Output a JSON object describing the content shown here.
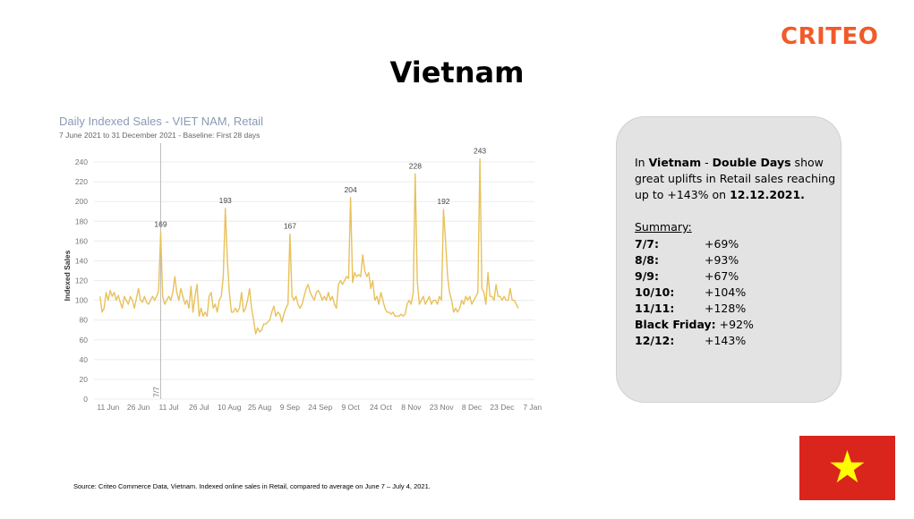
{
  "logo": "CRITEO",
  "page_title": "Vietnam",
  "chart_data": {
    "type": "line",
    "title": "Daily Indexed Sales - VIET NAM, Retail",
    "subtitle": "7 June 2021 to 31 December 2021  -  Baseline: First 28 days",
    "xlabel": "",
    "ylabel": "Indexed Sales",
    "yticks": [
      0,
      20,
      40,
      60,
      80,
      100,
      120,
      140,
      160,
      180,
      200,
      220,
      240
    ],
    "ylim": [
      0,
      250
    ],
    "xlim": [
      "2021-06-04",
      "2022-01-08"
    ],
    "xticks": [
      {
        "date": "2021-06-11",
        "label": "11 Jun"
      },
      {
        "date": "2021-06-26",
        "label": "26 Jun"
      },
      {
        "date": "2021-07-11",
        "label": "11 Jul"
      },
      {
        "date": "2021-07-26",
        "label": "26 Jul"
      },
      {
        "date": "2021-08-10",
        "label": "10 Aug"
      },
      {
        "date": "2021-08-25",
        "label": "25 Aug"
      },
      {
        "date": "2021-09-09",
        "label": "9 Sep"
      },
      {
        "date": "2021-09-24",
        "label": "24 Sep"
      },
      {
        "date": "2021-10-09",
        "label": "9 Oct"
      },
      {
        "date": "2021-10-24",
        "label": "24 Oct"
      },
      {
        "date": "2021-11-08",
        "label": "8 Nov"
      },
      {
        "date": "2021-11-23",
        "label": "23 Nov"
      },
      {
        "date": "2021-12-08",
        "label": "8 Dec"
      },
      {
        "date": "2021-12-23",
        "label": "23 Dec"
      },
      {
        "date": "2022-01-07",
        "label": "7 Jan"
      }
    ],
    "grid": "horizontal",
    "reference_line": {
      "date": "2021-07-07",
      "label": "7/7"
    },
    "series": [
      {
        "name": "",
        "color": "#e8c15a",
        "points": [
          [
            "2021-06-07",
            104
          ],
          [
            "2021-06-08",
            88
          ],
          [
            "2021-06-09",
            92
          ],
          [
            "2021-06-10",
            108
          ],
          [
            "2021-06-11",
            100
          ],
          [
            "2021-06-12",
            110
          ],
          [
            "2021-06-13",
            104
          ],
          [
            "2021-06-14",
            108
          ],
          [
            "2021-06-15",
            100
          ],
          [
            "2021-06-16",
            105
          ],
          [
            "2021-06-17",
            98
          ],
          [
            "2021-06-18",
            92
          ],
          [
            "2021-06-19",
            104
          ],
          [
            "2021-06-20",
            100
          ],
          [
            "2021-06-21",
            96
          ],
          [
            "2021-06-22",
            104
          ],
          [
            "2021-06-23",
            100
          ],
          [
            "2021-06-24",
            92
          ],
          [
            "2021-06-25",
            102
          ],
          [
            "2021-06-26",
            112
          ],
          [
            "2021-06-27",
            100
          ],
          [
            "2021-06-28",
            98
          ],
          [
            "2021-06-29",
            104
          ],
          [
            "2021-06-30",
            98
          ],
          [
            "2021-07-01",
            96
          ],
          [
            "2021-07-02",
            100
          ],
          [
            "2021-07-03",
            104
          ],
          [
            "2021-07-04",
            100
          ],
          [
            "2021-07-05",
            104
          ],
          [
            "2021-07-06",
            110
          ],
          [
            "2021-07-07",
            169
          ],
          [
            "2021-07-08",
            104
          ],
          [
            "2021-07-09",
            96
          ],
          [
            "2021-07-10",
            100
          ],
          [
            "2021-07-11",
            104
          ],
          [
            "2021-07-12",
            100
          ],
          [
            "2021-07-13",
            108
          ],
          [
            "2021-07-14",
            124
          ],
          [
            "2021-07-15",
            108
          ],
          [
            "2021-07-16",
            100
          ],
          [
            "2021-07-17",
            112
          ],
          [
            "2021-07-18",
            104
          ],
          [
            "2021-07-19",
            96
          ],
          [
            "2021-07-20",
            100
          ],
          [
            "2021-07-21",
            92
          ],
          [
            "2021-07-22",
            114
          ],
          [
            "2021-07-23",
            88
          ],
          [
            "2021-07-24",
            104
          ],
          [
            "2021-07-25",
            116
          ],
          [
            "2021-07-26",
            84
          ],
          [
            "2021-07-27",
            92
          ],
          [
            "2021-07-28",
            84
          ],
          [
            "2021-07-29",
            88
          ],
          [
            "2021-07-30",
            84
          ],
          [
            "2021-07-31",
            104
          ],
          [
            "2021-08-01",
            108
          ],
          [
            "2021-08-02",
            92
          ],
          [
            "2021-08-03",
            96
          ],
          [
            "2021-08-04",
            88
          ],
          [
            "2021-08-05",
            100
          ],
          [
            "2021-08-06",
            104
          ],
          [
            "2021-08-07",
            124
          ],
          [
            "2021-08-08",
            193
          ],
          [
            "2021-08-09",
            140
          ],
          [
            "2021-08-10",
            108
          ],
          [
            "2021-08-11",
            88
          ],
          [
            "2021-08-12",
            88
          ],
          [
            "2021-08-13",
            92
          ],
          [
            "2021-08-14",
            88
          ],
          [
            "2021-08-15",
            92
          ],
          [
            "2021-08-16",
            108
          ],
          [
            "2021-08-17",
            88
          ],
          [
            "2021-08-18",
            92
          ],
          [
            "2021-08-19",
            100
          ],
          [
            "2021-08-20",
            112
          ],
          [
            "2021-08-21",
            92
          ],
          [
            "2021-08-22",
            80
          ],
          [
            "2021-08-23",
            66
          ],
          [
            "2021-08-24",
            72
          ],
          [
            "2021-08-25",
            68
          ],
          [
            "2021-08-26",
            70
          ],
          [
            "2021-08-27",
            76
          ],
          [
            "2021-08-28",
            76
          ],
          [
            "2021-08-29",
            78
          ],
          [
            "2021-08-30",
            80
          ],
          [
            "2021-08-31",
            88
          ],
          [
            "2021-09-01",
            94
          ],
          [
            "2021-09-02",
            84
          ],
          [
            "2021-09-03",
            88
          ],
          [
            "2021-09-04",
            86
          ],
          [
            "2021-09-05",
            78
          ],
          [
            "2021-09-06",
            86
          ],
          [
            "2021-09-07",
            92
          ],
          [
            "2021-09-08",
            96
          ],
          [
            "2021-09-09",
            167
          ],
          [
            "2021-09-10",
            104
          ],
          [
            "2021-09-11",
            100
          ],
          [
            "2021-09-12",
            104
          ],
          [
            "2021-09-13",
            96
          ],
          [
            "2021-09-14",
            92
          ],
          [
            "2021-09-15",
            96
          ],
          [
            "2021-09-16",
            104
          ],
          [
            "2021-09-17",
            112
          ],
          [
            "2021-09-18",
            116
          ],
          [
            "2021-09-19",
            108
          ],
          [
            "2021-09-20",
            104
          ],
          [
            "2021-09-21",
            100
          ],
          [
            "2021-09-22",
            108
          ],
          [
            "2021-09-23",
            110
          ],
          [
            "2021-09-24",
            106
          ],
          [
            "2021-09-25",
            100
          ],
          [
            "2021-09-26",
            104
          ],
          [
            "2021-09-27",
            100
          ],
          [
            "2021-09-28",
            108
          ],
          [
            "2021-09-29",
            100
          ],
          [
            "2021-09-30",
            104
          ],
          [
            "2021-10-01",
            96
          ],
          [
            "2021-10-02",
            92
          ],
          [
            "2021-10-03",
            116
          ],
          [
            "2021-10-04",
            120
          ],
          [
            "2021-10-05",
            116
          ],
          [
            "2021-10-06",
            120
          ],
          [
            "2021-10-07",
            124
          ],
          [
            "2021-10-08",
            122
          ],
          [
            "2021-10-09",
            204
          ],
          [
            "2021-10-10",
            118
          ],
          [
            "2021-10-11",
            128
          ],
          [
            "2021-10-12",
            124
          ],
          [
            "2021-10-13",
            126
          ],
          [
            "2021-10-14",
            124
          ],
          [
            "2021-10-15",
            146
          ],
          [
            "2021-10-16",
            130
          ],
          [
            "2021-10-17",
            124
          ],
          [
            "2021-10-18",
            128
          ],
          [
            "2021-10-19",
            112
          ],
          [
            "2021-10-20",
            120
          ],
          [
            "2021-10-21",
            100
          ],
          [
            "2021-10-22",
            104
          ],
          [
            "2021-10-23",
            96
          ],
          [
            "2021-10-24",
            108
          ],
          [
            "2021-10-25",
            100
          ],
          [
            "2021-10-26",
            92
          ],
          [
            "2021-10-27",
            88
          ],
          [
            "2021-10-28",
            88
          ],
          [
            "2021-10-29",
            86
          ],
          [
            "2021-10-30",
            88
          ],
          [
            "2021-10-31",
            84
          ],
          [
            "2021-11-01",
            84
          ],
          [
            "2021-11-02",
            84
          ],
          [
            "2021-11-03",
            86
          ],
          [
            "2021-11-04",
            84
          ],
          [
            "2021-11-05",
            86
          ],
          [
            "2021-11-06",
            96
          ],
          [
            "2021-11-07",
            100
          ],
          [
            "2021-11-08",
            96
          ],
          [
            "2021-11-09",
            108
          ],
          [
            "2021-11-10",
            228
          ],
          [
            "2021-11-11",
            120
          ],
          [
            "2021-11-12",
            96
          ],
          [
            "2021-11-13",
            100
          ],
          [
            "2021-11-14",
            104
          ],
          [
            "2021-11-15",
            96
          ],
          [
            "2021-11-16",
            100
          ],
          [
            "2021-11-17",
            104
          ],
          [
            "2021-11-18",
            96
          ],
          [
            "2021-11-19",
            100
          ],
          [
            "2021-11-20",
            100
          ],
          [
            "2021-11-21",
            96
          ],
          [
            "2021-11-22",
            104
          ],
          [
            "2021-11-23",
            100
          ],
          [
            "2021-11-24",
            192
          ],
          [
            "2021-11-25",
            160
          ],
          [
            "2021-11-26",
            124
          ],
          [
            "2021-11-27",
            108
          ],
          [
            "2021-11-28",
            100
          ],
          [
            "2021-11-29",
            88
          ],
          [
            "2021-11-30",
            92
          ],
          [
            "2021-12-01",
            88
          ],
          [
            "2021-12-02",
            92
          ],
          [
            "2021-12-03",
            100
          ],
          [
            "2021-12-04",
            96
          ],
          [
            "2021-12-05",
            104
          ],
          [
            "2021-12-06",
            100
          ],
          [
            "2021-12-07",
            104
          ],
          [
            "2021-12-08",
            96
          ],
          [
            "2021-12-09",
            100
          ],
          [
            "2021-12-10",
            104
          ],
          [
            "2021-12-11",
            108
          ],
          [
            "2021-12-12",
            243
          ],
          [
            "2021-12-13",
            112
          ],
          [
            "2021-12-14",
            108
          ],
          [
            "2021-12-15",
            96
          ],
          [
            "2021-12-16",
            128
          ],
          [
            "2021-12-17",
            104
          ],
          [
            "2021-12-18",
            104
          ],
          [
            "2021-12-19",
            100
          ],
          [
            "2021-12-20",
            116
          ],
          [
            "2021-12-21",
            104
          ],
          [
            "2021-12-22",
            104
          ],
          [
            "2021-12-23",
            100
          ],
          [
            "2021-12-24",
            104
          ],
          [
            "2021-12-25",
            100
          ],
          [
            "2021-12-26",
            100
          ],
          [
            "2021-12-27",
            112
          ],
          [
            "2021-12-28",
            100
          ],
          [
            "2021-12-29",
            100
          ],
          [
            "2021-12-30",
            96
          ],
          [
            "2021-12-31",
            92
          ]
        ]
      }
    ],
    "annotations": [
      {
        "date": "2021-07-07",
        "value": 169,
        "label": "169"
      },
      {
        "date": "2021-08-08",
        "value": 193,
        "label": "193"
      },
      {
        "date": "2021-09-09",
        "value": 167,
        "label": "167"
      },
      {
        "date": "2021-10-09",
        "value": 204,
        "label": "204"
      },
      {
        "date": "2021-11-10",
        "value": 228,
        "label": "228"
      },
      {
        "date": "2021-11-24",
        "value": 192,
        "label": "192"
      },
      {
        "date": "2021-12-12",
        "value": 243,
        "label": "243"
      }
    ]
  },
  "summary_box": {
    "intro_1": "In ",
    "intro_country": "Vietnam",
    "intro_2": " - ",
    "intro_days": "Double Days",
    "intro_3": " show great uplifts in Retail sales reaching up to +143% on ",
    "intro_date": "12.12.2021.",
    "heading": "Summary:",
    "rows": [
      {
        "label": "7/7:",
        "value": "+69%"
      },
      {
        "label": "8/8:",
        "value": "+93%"
      },
      {
        "label": "9/9:",
        "value": "+67%"
      },
      {
        "label": "10/10:",
        "value": "+104%"
      },
      {
        "label": "11/11:",
        "value": "+128%"
      },
      {
        "label": "Black Friday:",
        "value": "+92%"
      },
      {
        "label": "12/12:",
        "value": "+143%"
      }
    ]
  },
  "flag": {
    "red": "#da251d",
    "star": "#ffff00",
    "icon": "star-icon"
  },
  "source": "Source: Criteo Commerce Data, Vietnam. Indexed online sales in Retail, compared to average on June 7 – July 4, 2021."
}
